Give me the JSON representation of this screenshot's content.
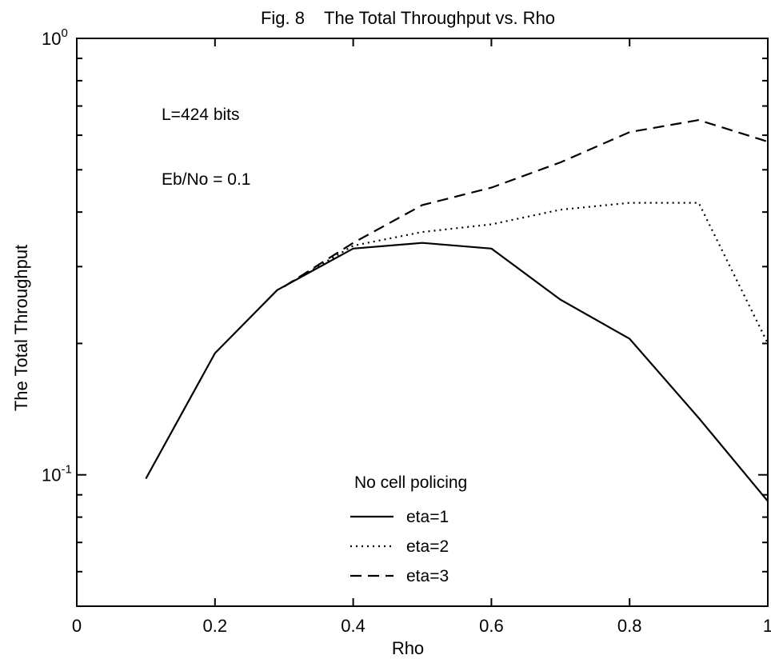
{
  "chart_data": {
    "type": "line",
    "title": "Fig. 8    The Total Throughput vs. Rho",
    "xlabel": "Rho",
    "ylabel": "The Total Throughput",
    "xlim": [
      0,
      1
    ],
    "ylim": [
      0.05,
      1
    ],
    "yscale": "log",
    "grid": false,
    "x_ticks": [
      0,
      0.2,
      0.4,
      0.6,
      0.8,
      1
    ],
    "x_tick_labels": [
      "0",
      "0.2",
      "0.4",
      "0.6",
      "0.8",
      "1"
    ],
    "y_major_ticks": [
      {
        "value": 1,
        "base": "10",
        "exp": "0"
      },
      {
        "value": 0.1,
        "base": "10",
        "exp": "-1"
      }
    ],
    "y_minor_ticks": [
      0.06,
      0.07,
      0.08,
      0.09,
      0.2,
      0.3,
      0.4,
      0.5,
      0.6,
      0.7,
      0.8,
      0.9
    ],
    "annotations": [
      "L=424 bits",
      "Eb/No = 0.1"
    ],
    "legend": {
      "title": "No cell policing",
      "position": "bottom-center"
    },
    "series": [
      {
        "name": "eta=1",
        "style": "solid",
        "x": [
          0.1,
          0.2,
          0.29,
          0.4,
          0.5,
          0.6,
          0.7,
          0.8,
          0.9,
          1.0
        ],
        "y": [
          0.098,
          0.19,
          0.265,
          0.33,
          0.34,
          0.33,
          0.252,
          0.205,
          0.135,
          0.087
        ]
      },
      {
        "name": "eta=2",
        "style": "dotted",
        "x": [
          0.3,
          0.4,
          0.5,
          0.6,
          0.7,
          0.8,
          0.9,
          1.0
        ],
        "y": [
          0.27,
          0.335,
          0.36,
          0.375,
          0.405,
          0.42,
          0.42,
          0.2
        ]
      },
      {
        "name": "eta=3",
        "style": "dashed",
        "x": [
          0.3,
          0.4,
          0.5,
          0.6,
          0.7,
          0.8,
          0.9,
          1.0
        ],
        "y": [
          0.27,
          0.34,
          0.415,
          0.455,
          0.52,
          0.61,
          0.65,
          0.58
        ]
      }
    ]
  }
}
